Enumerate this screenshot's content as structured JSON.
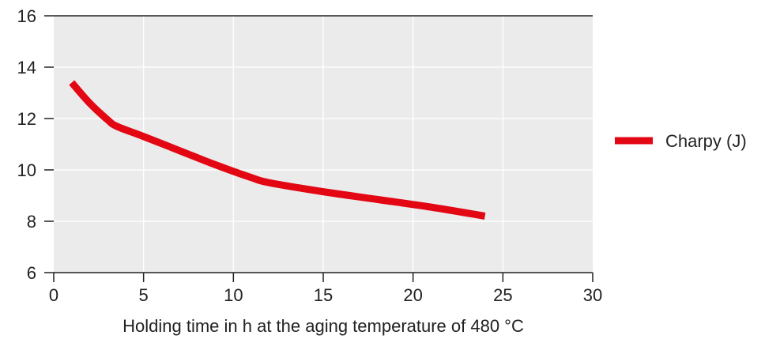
{
  "chart_data": {
    "type": "line",
    "xlabel": "Holding time in h at the aging temperature of 480 °C",
    "ylabel": "",
    "xlim": [
      0,
      30
    ],
    "ylim": [
      6,
      16
    ],
    "xticks": [
      0,
      5,
      10,
      15,
      20,
      25,
      30
    ],
    "yticks": [
      6,
      8,
      10,
      12,
      14,
      16
    ],
    "grid": true,
    "legend_position": "right",
    "series": [
      {
        "name": "Charpy (J)",
        "color": "#e30613",
        "x": [
          1,
          2,
          3,
          3.5,
          5,
          7,
          9,
          11,
          12,
          15,
          18,
          21,
          24
        ],
        "y": [
          13.4,
          12.6,
          11.95,
          11.7,
          11.3,
          10.75,
          10.2,
          9.7,
          9.5,
          9.15,
          8.85,
          8.55,
          8.2
        ]
      }
    ]
  }
}
